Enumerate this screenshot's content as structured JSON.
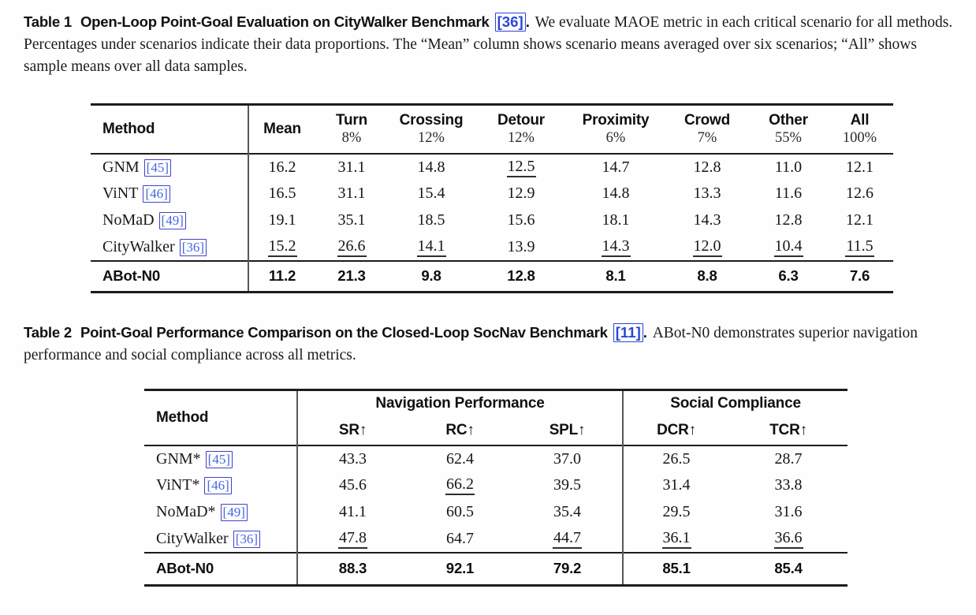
{
  "colors": {
    "citation_text_blue": "#4468e0",
    "citation_box_blue": "#4343c4",
    "caption_citation_blue": "#2946d8",
    "rule_black": "#1c1c1c",
    "divider_gray": "#585858"
  },
  "caption1": {
    "tag": "Table 1",
    "title": "Open-Loop Point-Goal Evaluation on CityWalker Benchmark",
    "cite": "[36]",
    "period": ".",
    "body": "We evaluate MAOE metric in each critical scenario for all methods. Percentages under scenarios indicate their data proportions. The “Mean” column shows scenario means averaged over six scenarios; “All” shows sample means over all data samples."
  },
  "caption2": {
    "tag": "Table 2",
    "title": "Point-Goal Performance Comparison on the Closed-Loop SocNav Benchmark",
    "cite": "[11]",
    "period": ".",
    "body": "ABot-N0 demonstrates superior navigation performance and social compliance across all metrics."
  },
  "chart_data": [
    {
      "type": "table",
      "title": "Open-Loop Point-Goal Evaluation on CityWalker Benchmark (MAOE)",
      "method_header": "Method",
      "columns": [
        {
          "label": "Mean",
          "sub": ""
        },
        {
          "label": "Turn",
          "sub": "8%"
        },
        {
          "label": "Crossing",
          "sub": "12%"
        },
        {
          "label": "Detour",
          "sub": "12%"
        },
        {
          "label": "Proximity",
          "sub": "6%"
        },
        {
          "label": "Crowd",
          "sub": "7%"
        },
        {
          "label": "Other",
          "sub": "55%"
        },
        {
          "label": "All",
          "sub": "100%"
        }
      ],
      "rows": [
        {
          "method": "GNM",
          "cite": "[45]",
          "values": [
            "16.2",
            "31.1",
            "14.8",
            "12.5",
            "14.7",
            "12.8",
            "11.0",
            "12.1"
          ],
          "underline": [
            false,
            false,
            false,
            true,
            false,
            false,
            false,
            false
          ]
        },
        {
          "method": "ViNT",
          "cite": "[46]",
          "values": [
            "16.5",
            "31.1",
            "15.4",
            "12.9",
            "14.8",
            "13.3",
            "11.6",
            "12.6"
          ],
          "underline": [
            false,
            false,
            false,
            false,
            false,
            false,
            false,
            false
          ]
        },
        {
          "method": "NoMaD",
          "cite": "[49]",
          "values": [
            "19.1",
            "35.1",
            "18.5",
            "15.6",
            "18.1",
            "14.3",
            "12.8",
            "12.1"
          ],
          "underline": [
            false,
            false,
            false,
            false,
            false,
            false,
            false,
            false
          ]
        },
        {
          "method": "CityWalker",
          "cite": "[36]",
          "values": [
            "15.2",
            "26.6",
            "14.1",
            "13.9",
            "14.3",
            "12.0",
            "10.4",
            "11.5"
          ],
          "underline": [
            true,
            true,
            true,
            false,
            true,
            true,
            true,
            true
          ]
        }
      ],
      "footer": {
        "method": "ABot-N0",
        "values": [
          "11.2",
          "21.3",
          "9.8",
          "12.8",
          "8.1",
          "8.8",
          "6.3",
          "7.6"
        ]
      }
    },
    {
      "type": "table",
      "title": "Point-Goal Performance Comparison on the Closed-Loop SocNav Benchmark",
      "method_header": "Method",
      "groups": [
        {
          "label": "Navigation Performance",
          "cols": [
            "SR↑",
            "RC↑",
            "SPL↑"
          ]
        },
        {
          "label": "Social Compliance",
          "cols": [
            "DCR↑",
            "TCR↑"
          ]
        }
      ],
      "rows": [
        {
          "method": "GNM*",
          "cite": "[45]",
          "values": [
            "43.3",
            "62.4",
            "37.0",
            "26.5",
            "28.7"
          ],
          "underline": [
            false,
            false,
            false,
            false,
            false
          ]
        },
        {
          "method": "ViNT*",
          "cite": "[46]",
          "values": [
            "45.6",
            "66.2",
            "39.5",
            "31.4",
            "33.8"
          ],
          "underline": [
            false,
            true,
            false,
            false,
            false
          ]
        },
        {
          "method": "NoMaD*",
          "cite": "[49]",
          "values": [
            "41.1",
            "60.5",
            "35.4",
            "29.5",
            "31.6"
          ],
          "underline": [
            false,
            false,
            false,
            false,
            false
          ]
        },
        {
          "method": "CityWalker",
          "cite": "[36]",
          "values": [
            "47.8",
            "64.7",
            "44.7",
            "36.1",
            "36.6"
          ],
          "underline": [
            true,
            false,
            true,
            true,
            true
          ]
        }
      ],
      "footer": {
        "method": "ABot-N0",
        "values": [
          "88.3",
          "92.1",
          "79.2",
          "85.1",
          "85.4"
        ]
      }
    }
  ]
}
